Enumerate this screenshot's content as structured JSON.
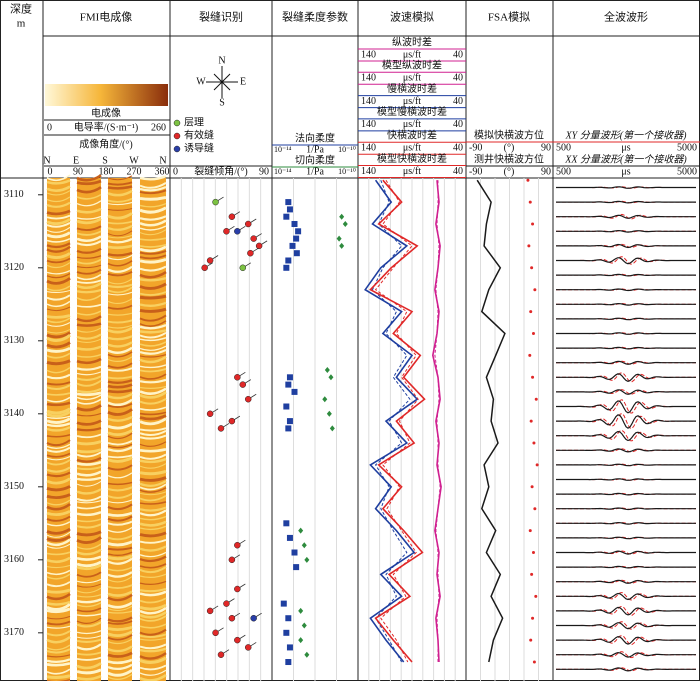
{
  "depth_track": {
    "title": "深度",
    "unit": "m",
    "ylim": [
      3107.7,
      3176.6
    ],
    "yticks": [
      3110,
      3120,
      3130,
      3140,
      3150,
      3160,
      3170
    ]
  },
  "fmi": {
    "title": "FMI电成像",
    "colorbar_label": "电成像",
    "scale": {
      "min": 0,
      "label": "电导率/(S·m⁻¹)",
      "max": 260
    },
    "angle_label": "成像角度/(°)",
    "directions": [
      "N",
      "E",
      "S",
      "W",
      "N"
    ],
    "angle_ticks": [
      0,
      90,
      180,
      270,
      360
    ]
  },
  "fractures": {
    "title": "裂缝识别",
    "compass": [
      "N",
      "W",
      "E",
      "S"
    ],
    "xlim": [
      0,
      90
    ],
    "axis_label": "裂缝倾角/(°)",
    "series": [
      {
        "name": "层理",
        "color": "#7cc242",
        "depth": [
          3111,
          3120
        ],
        "values": [
          40,
          65
        ]
      },
      {
        "name": "有效缝",
        "color": "#e02828",
        "depth": [
          3113,
          3114,
          3115,
          3116,
          3117,
          3118,
          3119,
          3120,
          3135,
          3136,
          3138,
          3140,
          3141,
          3142,
          3158,
          3160,
          3164,
          3166,
          3167,
          3168,
          3170,
          3171,
          3172,
          3173
        ],
        "values": [
          55,
          70,
          50,
          75,
          80,
          72,
          35,
          30,
          60,
          65,
          70,
          35,
          55,
          45,
          60,
          55,
          60,
          50,
          35,
          55,
          40,
          60,
          70,
          45
        ]
      },
      {
        "name": "诱导缝",
        "color": "#2a3ea8",
        "depth": [
          3115,
          3168
        ],
        "values": [
          60,
          75
        ]
      }
    ]
  },
  "compliance": {
    "title": "裂缝柔度参数",
    "unit": "1/Pa",
    "log": true,
    "series": [
      {
        "name": "法向柔度",
        "color": "#1f3fa0",
        "xlim": [
          1e-14,
          1e-10
        ],
        "xticks": [
          {
            "value": 1e-14,
            "label": "10⁻¹⁴"
          },
          {
            "value": 1e-10,
            "label": "10⁻¹⁰"
          }
        ],
        "depth": [
          3111,
          3112,
          3113,
          3114,
          3115,
          3116,
          3117,
          3118,
          3119,
          3120,
          3135,
          3136,
          3137,
          3139,
          3141,
          3142,
          3155,
          3157,
          3159,
          3161,
          3166,
          3168,
          3170,
          3172,
          3174
        ],
        "values": [
          5e-14,
          6e-14,
          4e-14,
          1e-13,
          1.5e-13,
          1.2e-13,
          8e-14,
          1.3e-13,
          5e-14,
          4e-14,
          6e-14,
          5e-14,
          1e-13,
          4e-14,
          6e-14,
          5e-14,
          4e-14,
          6e-14,
          1e-13,
          1.2e-13,
          3e-14,
          5e-14,
          4e-14,
          6e-14,
          5e-14
        ]
      },
      {
        "name": "切向柔度",
        "color": "#2e8b3e",
        "xlim": [
          1e-14,
          1e-10
        ],
        "xticks": [
          {
            "value": 1e-14,
            "label": "10⁻¹⁴"
          },
          {
            "value": 1e-10,
            "label": "10⁻¹⁰"
          }
        ],
        "depth": [
          3113,
          3114,
          3116,
          3117,
          3134,
          3135,
          3138,
          3140,
          3142,
          3156,
          3158,
          3160,
          3167,
          3169,
          3171,
          3173
        ],
        "values": [
          2e-11,
          3e-11,
          1.5e-11,
          2e-11,
          4e-12,
          6e-12,
          3e-12,
          5e-12,
          7e-12,
          2e-13,
          3e-13,
          4e-13,
          2e-13,
          3e-13,
          2e-13,
          4e-13
        ]
      }
    ]
  },
  "velocity": {
    "title": "波速模拟",
    "unit": "μs/ft",
    "xlim": [
      140,
      40
    ],
    "depth": [
      3108,
      3111,
      3114,
      3117,
      3120,
      3123,
      3126,
      3129,
      3132,
      3135,
      3138,
      3141,
      3144,
      3147,
      3150,
      3153,
      3156,
      3159,
      3162,
      3165,
      3168,
      3171,
      3174
    ],
    "series": [
      {
        "name": "纵波时差",
        "color": "#d02090",
        "values": [
          66,
          64,
          67,
          63,
          65,
          68,
          64,
          66,
          70,
          65,
          63,
          67,
          64,
          66,
          62,
          65,
          68,
          64,
          66,
          63,
          67,
          65,
          64
        ]
      },
      {
        "name": "模型纵波时差",
        "color": "#d02090",
        "values": [
          65,
          65,
          66,
          64,
          65,
          67,
          65,
          66,
          68,
          65,
          64,
          66,
          65,
          65,
          63,
          65,
          67,
          65,
          65,
          64,
          66,
          65,
          65
        ]
      },
      {
        "name": "慢横波时差",
        "color": "#1f3fa0",
        "values": [
          125,
          110,
          128,
          95,
          120,
          135,
          100,
          118,
          90,
          105,
          85,
          115,
          95,
          130,
          110,
          125,
          105,
          88,
          120,
          100,
          130,
          115,
          98
        ]
      },
      {
        "name": "模型慢横波时差",
        "color": "#1f3fa0",
        "values": [
          120,
          112,
          122,
          100,
          118,
          128,
          105,
          115,
          95,
          108,
          92,
          112,
          100,
          125,
          112,
          120,
          108,
          95,
          115,
          105,
          125,
          112,
          100
        ]
      },
      {
        "name": "快横波时差",
        "color": "#e02828",
        "values": [
          118,
          100,
          122,
          85,
          110,
          130,
          90,
          108,
          82,
          98,
          78,
          105,
          88,
          122,
          100,
          118,
          98,
          80,
          112,
          92,
          125,
          108,
          90
        ]
      },
      {
        "name": "模型快横波时差",
        "color": "#e02828",
        "values": [
          115,
          102,
          118,
          90,
          108,
          125,
          95,
          105,
          86,
          100,
          84,
          102,
          92,
          118,
          102,
          114,
          100,
          86,
          108,
          96,
          120,
          105,
          94
        ]
      }
    ]
  },
  "fsa": {
    "title": "FSA模拟",
    "unit": "(°)",
    "xlim": [
      -90,
      90
    ],
    "depth": [
      3108,
      3111,
      3114,
      3117,
      3120,
      3123,
      3126,
      3129,
      3132,
      3135,
      3138,
      3141,
      3144,
      3147,
      3150,
      3153,
      3156,
      3159,
      3162,
      3165,
      3168,
      3171,
      3174
    ],
    "series": [
      {
        "name": "模拟快横波方位",
        "color": "#e02828",
        "values": [
          40,
          45,
          50,
          42,
          48,
          55,
          46,
          52,
          44,
          50,
          58,
          47,
          53,
          60,
          49,
          55,
          45,
          52,
          48,
          57,
          50,
          46,
          54
        ]
      },
      {
        "name": "测井快横波方位",
        "color": "#1a1a1a",
        "values": [
          -70,
          -40,
          -50,
          -55,
          -20,
          -45,
          -60,
          -10,
          -30,
          -50,
          -35,
          -40,
          -25,
          -55,
          -45,
          -60,
          -30,
          -50,
          -20,
          -40,
          -15,
          -35,
          -45
        ]
      }
    ]
  },
  "waveform": {
    "title": "全波波形",
    "unit": "μs",
    "xlim": [
      500,
      5000
    ],
    "depth": [
      3109,
      3111,
      3113,
      3115,
      3117,
      3119,
      3121,
      3123,
      3125,
      3127,
      3129,
      3131,
      3133,
      3135,
      3137,
      3139,
      3141,
      3143,
      3145,
      3147,
      3149,
      3151,
      3153,
      3155,
      3157,
      3159,
      3161,
      3163,
      3165,
      3167,
      3169,
      3171,
      3173,
      3175
    ],
    "series": [
      {
        "name": "XY 分量波形(第一个接收器)",
        "color": "#e02828",
        "values": [
          0.1,
          0.1,
          0.3,
          0.1,
          0.2,
          0.5,
          0.1,
          0.1,
          0.1,
          0.1,
          0.1,
          0.1,
          0.2,
          0.6,
          0.3,
          0.9,
          1.0,
          0.7,
          0.2,
          0.1,
          0.1,
          0.1,
          0.1,
          0.1,
          0.1,
          0.2,
          0.1,
          0.2,
          0.5,
          0.6,
          0.5,
          0.6,
          0.4,
          0.2
        ]
      },
      {
        "name": "XX 分量波形(第一个接收器)",
        "color": "#1a1a1a",
        "values": [
          0.1,
          0.1,
          0.2,
          0.1,
          0.2,
          0.4,
          0.1,
          0.1,
          0.1,
          0.1,
          0.1,
          0.1,
          0.2,
          0.5,
          0.3,
          0.8,
          0.9,
          0.6,
          0.2,
          0.1,
          0.1,
          0.1,
          0.1,
          0.1,
          0.1,
          0.2,
          0.1,
          0.2,
          0.4,
          0.5,
          0.4,
          0.5,
          0.3,
          0.2
        ]
      }
    ]
  }
}
